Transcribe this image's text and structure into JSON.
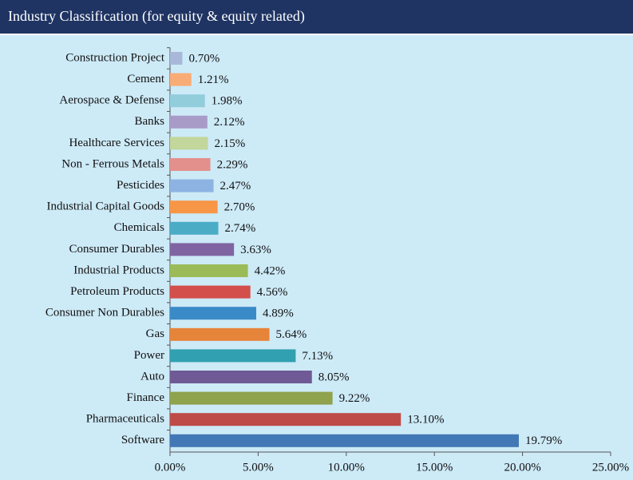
{
  "chart_data": {
    "type": "barh",
    "title": "Industry Classification (for equity & equity related)",
    "categories": [
      "Construction Project",
      "Cement",
      "Aerospace & Defense",
      "Banks",
      "Healthcare Services",
      "Non - Ferrous Metals",
      "Pesticides",
      "Industrial Capital Goods",
      "Chemicals",
      "Consumer Durables",
      "Industrial Products",
      "Petroleum Products",
      "Consumer Non Durables",
      "Gas",
      "Power",
      "Auto",
      "Finance",
      "Pharmaceuticals",
      "Software"
    ],
    "values": [
      0.7,
      1.21,
      1.98,
      2.12,
      2.15,
      2.29,
      2.47,
      2.7,
      2.74,
      3.63,
      4.42,
      4.56,
      4.89,
      5.64,
      7.13,
      8.05,
      9.22,
      13.1,
      19.79
    ],
    "value_labels": [
      "0.70%",
      "1.21%",
      "1.98%",
      "2.12%",
      "2.15%",
      "2.29%",
      "2.47%",
      "2.70%",
      "2.74%",
      "3.63%",
      "4.42%",
      "4.56%",
      "4.89%",
      "5.64%",
      "7.13%",
      "8.05%",
      "9.22%",
      "13.10%",
      "19.79%"
    ],
    "colors": [
      "#a9b8d8",
      "#f9ac75",
      "#92cddc",
      "#a99bc8",
      "#c3d69b",
      "#e3908d",
      "#8db3e2",
      "#f79646",
      "#4bacc6",
      "#8064a2",
      "#9bbb59",
      "#d34f4b",
      "#3a8ac8",
      "#e6843a",
      "#31a0b0",
      "#6f5a96",
      "#8fa24c",
      "#be4b48",
      "#4278b5"
    ],
    "xlim": [
      0,
      25
    ],
    "xticks": [
      {
        "value": 0,
        "label": "0.00%"
      },
      {
        "value": 5,
        "label": "5.00%"
      },
      {
        "value": 10,
        "label": "10.00%"
      },
      {
        "value": 15,
        "label": "15.00%"
      },
      {
        "value": 20,
        "label": "20.00%"
      },
      {
        "value": 25,
        "label": "25.00%"
      }
    ]
  }
}
